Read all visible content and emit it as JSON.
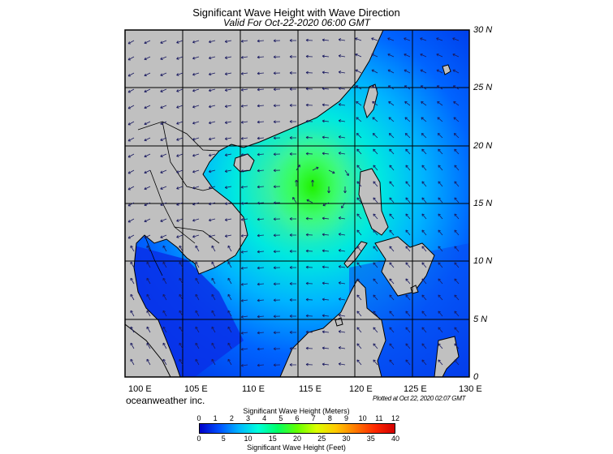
{
  "title": "Significant Wave Height with Wave Direction",
  "subtitle": "Valid For Oct-22-2020 06:00 GMT",
  "map": {
    "lon_range": [
      100,
      130
    ],
    "lat_range": [
      0,
      30
    ],
    "lat_labels": [
      "30 N",
      "25 N",
      "20 N",
      "15 N",
      "10 N",
      "5 N",
      "0"
    ],
    "lon_labels": [
      "100 E",
      "105 E",
      "110 E",
      "115 E",
      "120 E",
      "125 E",
      "130 E"
    ],
    "land_color": "#c0c0c0",
    "max_wave_region": "green core near 115 E 17 N"
  },
  "credits": {
    "company": "oceanweather inc.",
    "plotted": "Plotted at Oct 22, 2020 02:07 GMT"
  },
  "legend": {
    "meters_title": "Significant Wave Height (Meters)",
    "meters_ticks": [
      "0",
      "1",
      "2",
      "3",
      "4",
      "5",
      "6",
      "7",
      "8",
      "9",
      "10",
      "11",
      "12"
    ],
    "feet_title": "Significant Wave Height (Feet)",
    "feet_ticks": [
      "0",
      "5",
      "10",
      "15",
      "20",
      "25",
      "30",
      "35",
      "40"
    ],
    "colors": [
      "#0000c8",
      "#0050ff",
      "#00b4ff",
      "#00ffdc",
      "#00ff64",
      "#64ff00",
      "#dcff00",
      "#ffc800",
      "#ff7800",
      "#ff2800",
      "#d20000"
    ]
  }
}
